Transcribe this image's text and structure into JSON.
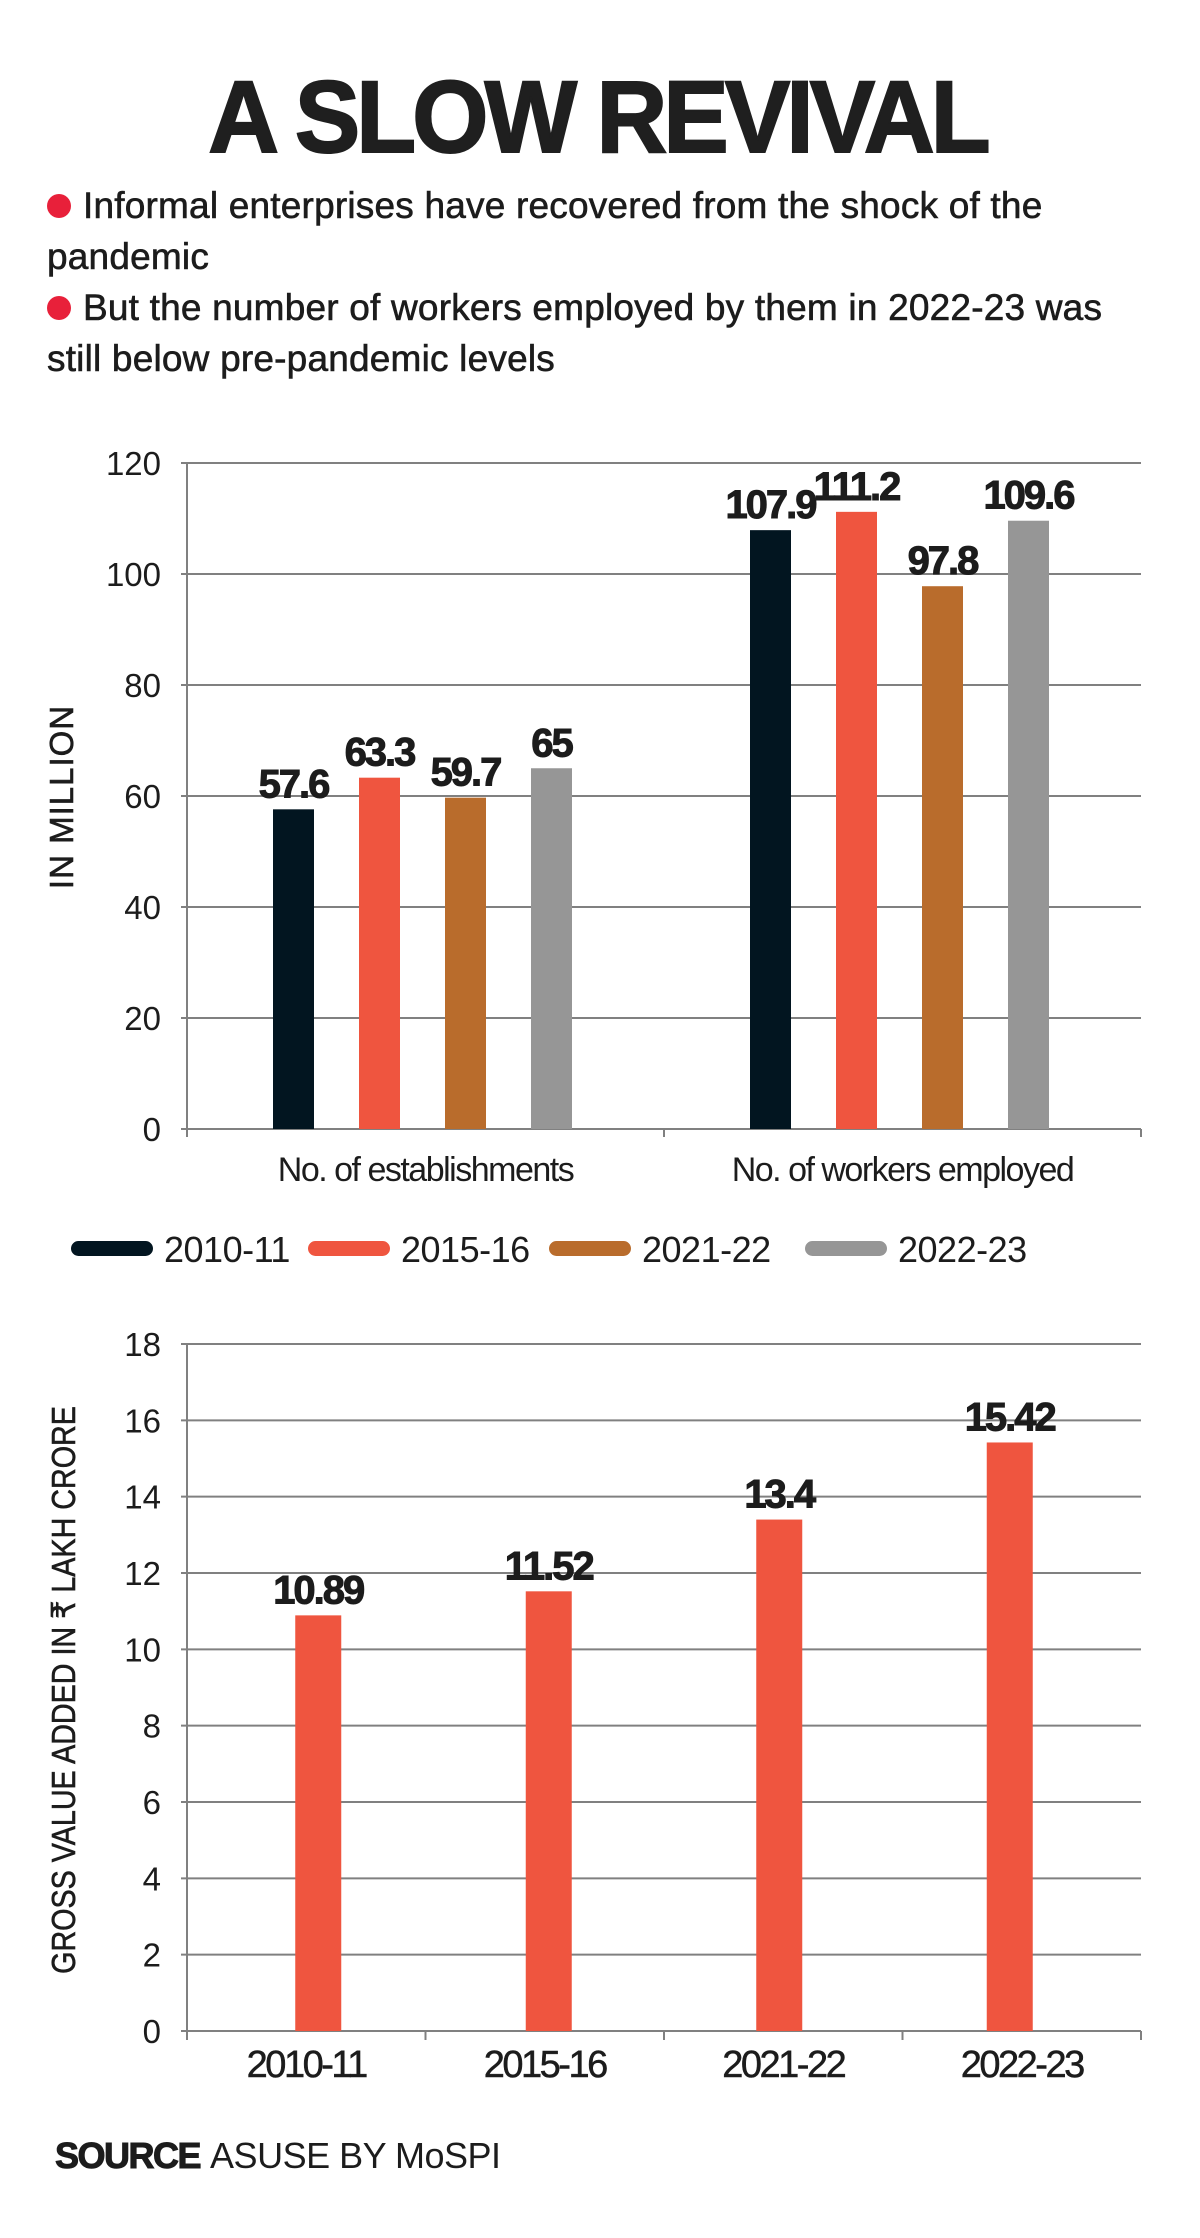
{
  "title": "A SLOW REVIVAL",
  "bullets": [
    "Informal enterprises have recovered from the shock of the pandemic",
    "But the number of workers employed by them in 2022-23 was still below pre-pandemic levels"
  ],
  "bullet_color": "#e8203a",
  "source": {
    "label": "SOURCE",
    "text": "ASUSE BY MoSPI"
  },
  "chart_data": [
    {
      "type": "bar",
      "title": "",
      "xlabel": "",
      "ylabel": "IN MILLION",
      "ylim": [
        0,
        120
      ],
      "yticks": [
        0,
        20,
        40,
        60,
        80,
        100,
        120
      ],
      "grid": true,
      "categories": [
        "No. of establishments",
        "No. of workers employed"
      ],
      "series": [
        {
          "name": "2010-11",
          "color": "#021520",
          "values": [
            57.6,
            107.9
          ]
        },
        {
          "name": "2015-16",
          "color": "#ef553f",
          "values": [
            63.3,
            111.2
          ]
        },
        {
          "name": "2021-22",
          "color": "#b96c2c",
          "values": [
            59.7,
            97.8
          ]
        },
        {
          "name": "2022-23",
          "color": "#969696",
          "values": [
            65,
            109.6
          ]
        }
      ],
      "value_labels": [
        [
          "57.6",
          "107.9"
        ],
        [
          "63.3",
          "111.2"
        ],
        [
          "59.7",
          "97.8"
        ],
        [
          "65",
          "109.6"
        ]
      ],
      "legend": "bottom"
    },
    {
      "type": "bar",
      "title": "",
      "xlabel": "",
      "ylabel": "GROSS VALUE ADDED IN ₹ LAKH CRORE",
      "ylim": [
        0,
        18
      ],
      "yticks": [
        0,
        2,
        4,
        6,
        8,
        10,
        12,
        14,
        16,
        18
      ],
      "grid": true,
      "categories": [
        "2010-11",
        "2015-16",
        "2021-22",
        "2022-23"
      ],
      "values": [
        10.89,
        11.52,
        13.4,
        15.42
      ],
      "value_labels": [
        "10.89",
        "11.52",
        "13.4",
        "15.42"
      ],
      "color": "#ef553f"
    }
  ]
}
